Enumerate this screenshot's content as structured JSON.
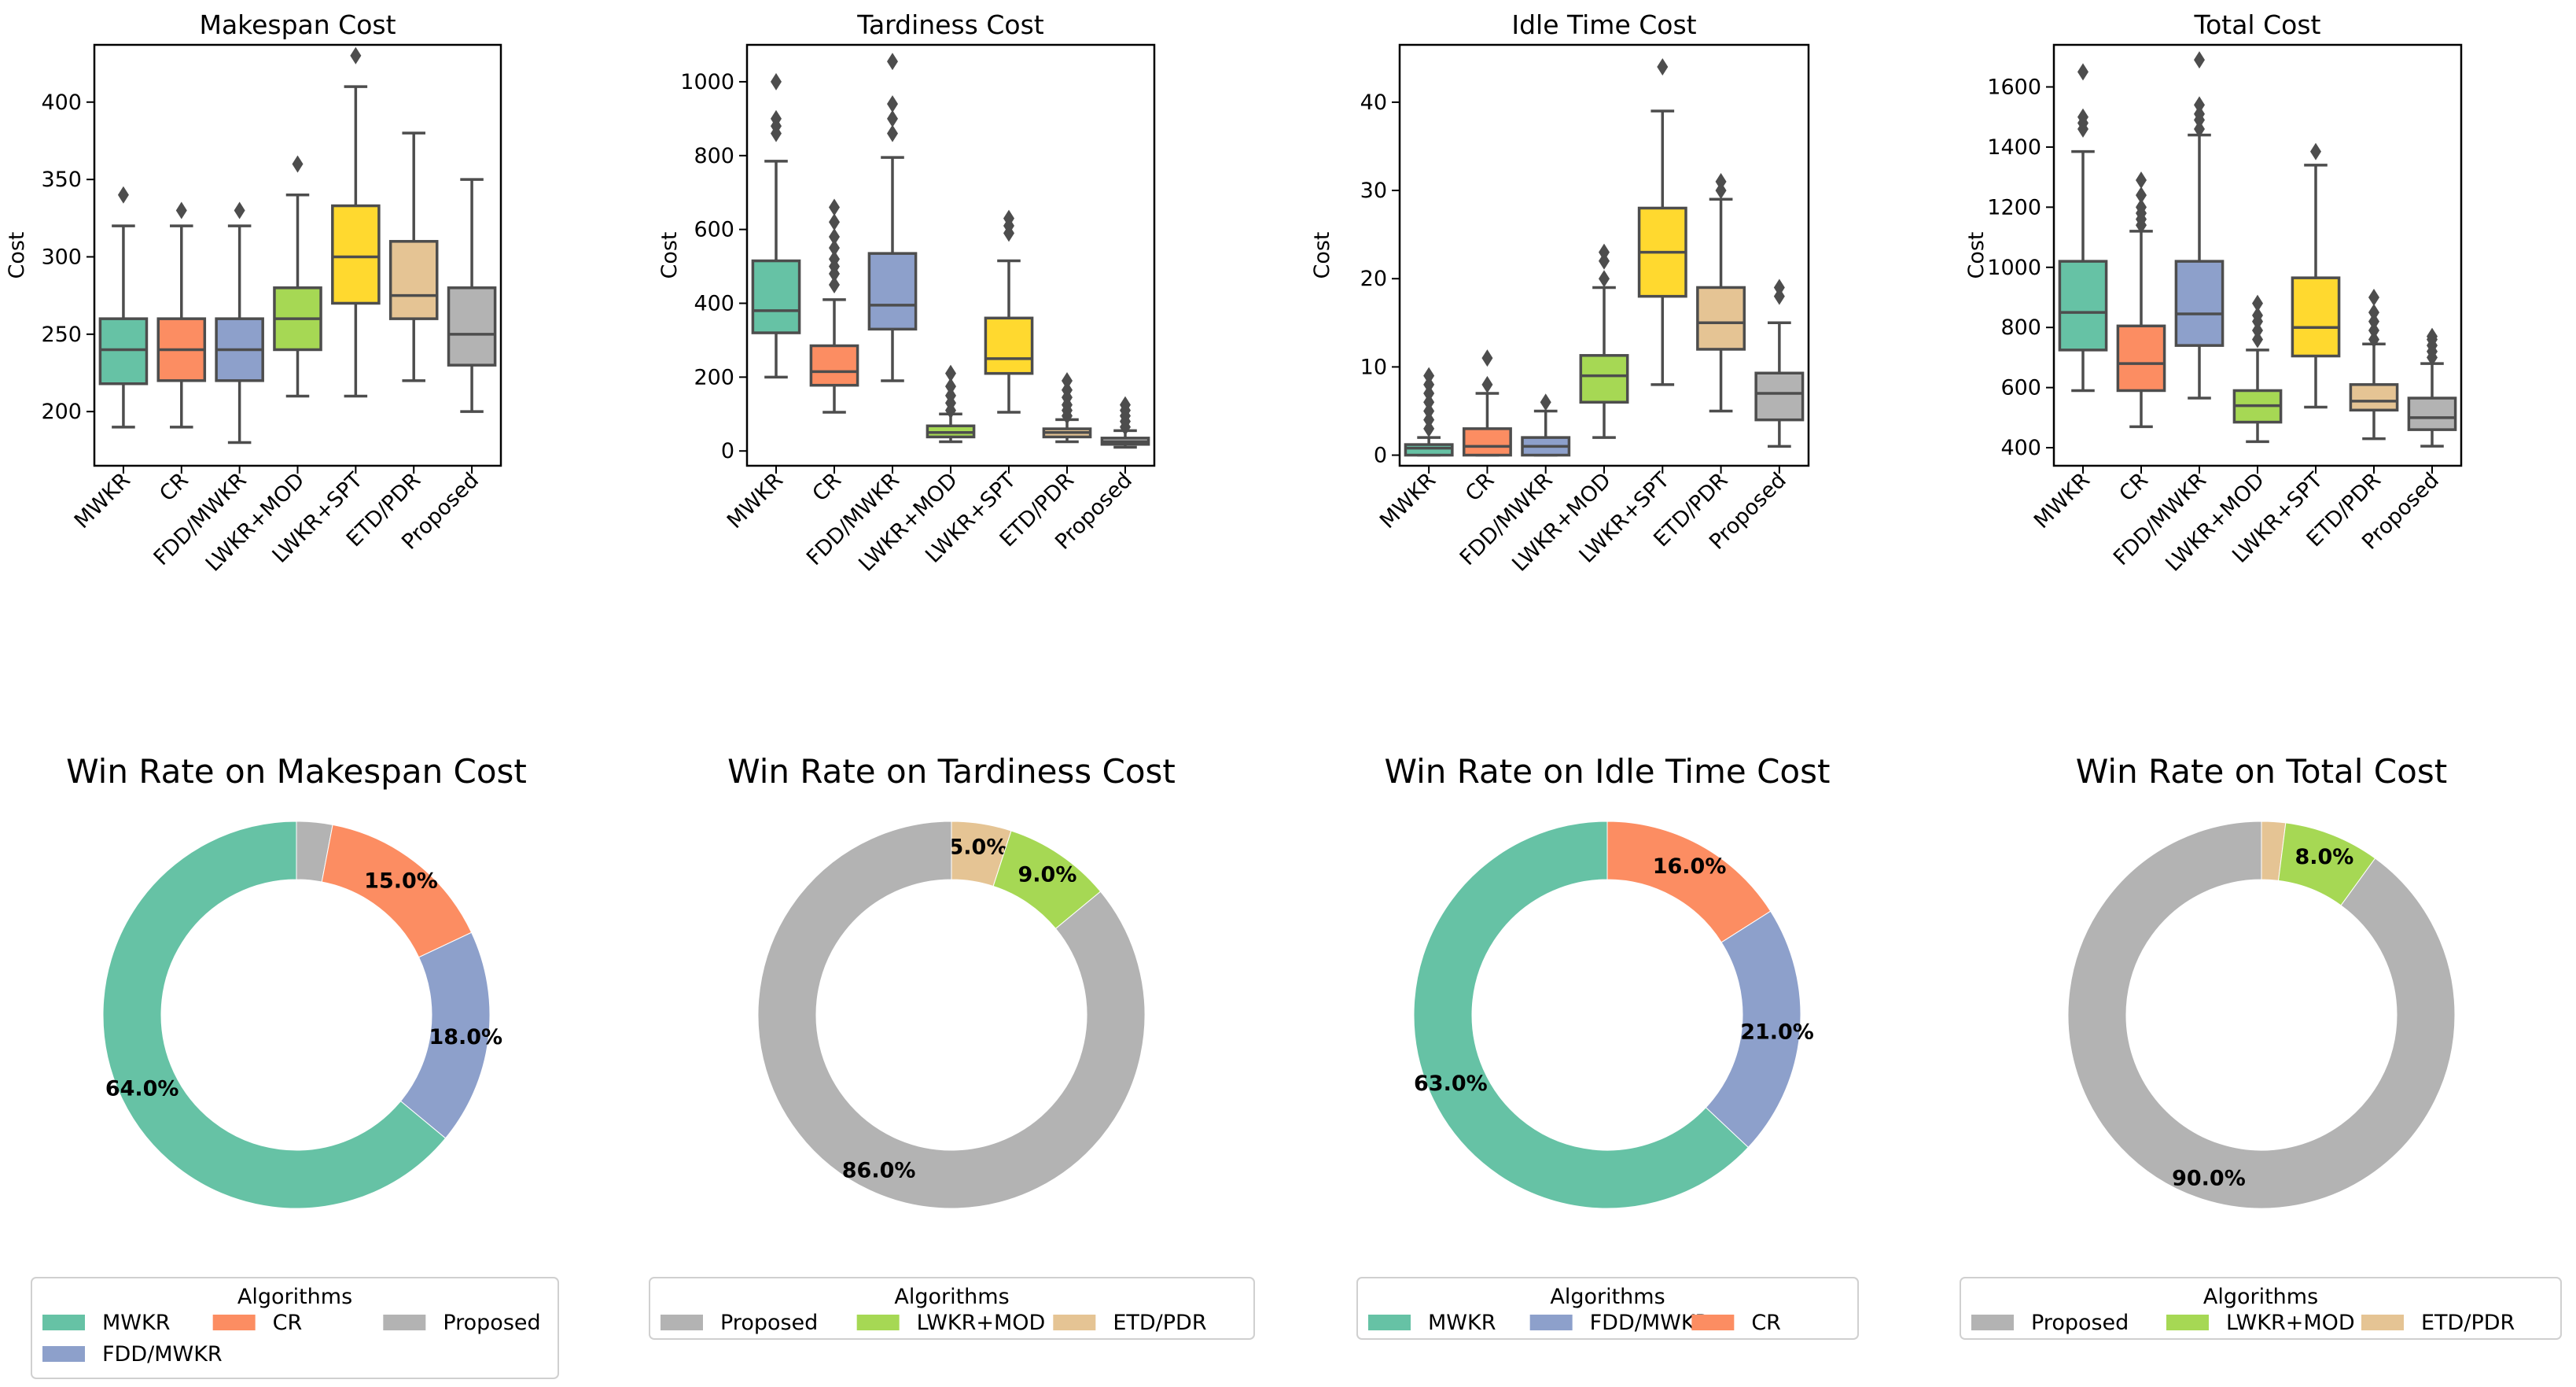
{
  "colors": {
    "MWKR": "#66c2a5",
    "CR": "#fc8d62",
    "FDD/MWKR": "#8da0cb",
    "LWKR+MOD": "#a6d854",
    "LWKR+SPT": "#ffd92f",
    "ETD/PDR": "#e5c494",
    "Proposed": "#b3b3b3",
    "line": "#4d4d4d"
  },
  "chart_data": [
    {
      "type": "box",
      "title": "Makespan Cost",
      "ylabel": "Cost",
      "ylim": [
        165,
        437
      ],
      "yticks": [
        200,
        250,
        300,
        350,
        400
      ],
      "categories": [
        "MWKR",
        "CR",
        "FDD/MWKR",
        "LWKR+MOD",
        "LWKR+SPT",
        "ETD/PDR",
        "Proposed"
      ],
      "boxes": [
        {
          "low": 190,
          "q1": 218,
          "median": 240,
          "q3": 260,
          "high": 320,
          "outliers": [
            340
          ]
        },
        {
          "low": 190,
          "q1": 220,
          "median": 240,
          "q3": 260,
          "high": 320,
          "outliers": [
            330
          ]
        },
        {
          "low": 180,
          "q1": 220,
          "median": 240,
          "q3": 260,
          "high": 320,
          "outliers": [
            330
          ]
        },
        {
          "low": 210,
          "q1": 240,
          "median": 260,
          "q3": 280,
          "high": 340,
          "outliers": [
            360
          ]
        },
        {
          "low": 210,
          "q1": 270,
          "median": 300,
          "q3": 333,
          "high": 410,
          "outliers": [
            430
          ]
        },
        {
          "low": 220,
          "q1": 260,
          "median": 275,
          "q3": 310,
          "high": 380,
          "outliers": []
        },
        {
          "low": 200,
          "q1": 230,
          "median": 250,
          "q3": 280,
          "high": 350,
          "outliers": []
        }
      ]
    },
    {
      "type": "box",
      "title": "Tardiness Cost",
      "ylabel": "Cost",
      "ylim": [
        -40,
        1100
      ],
      "yticks": [
        0,
        200,
        400,
        600,
        800,
        1000
      ],
      "categories": [
        "MWKR",
        "CR",
        "FDD/MWKR",
        "LWKR+MOD",
        "LWKR+SPT",
        "ETD/PDR",
        "Proposed"
      ],
      "boxes": [
        {
          "low": 200,
          "q1": 320,
          "median": 380,
          "q3": 515,
          "high": 785,
          "outliers": [
            860,
            880,
            900,
            1000
          ]
        },
        {
          "low": 105,
          "q1": 178,
          "median": 215,
          "q3": 285,
          "high": 410,
          "outliers": [
            450,
            480,
            500,
            520,
            550,
            580,
            620,
            660
          ]
        },
        {
          "low": 190,
          "q1": 330,
          "median": 395,
          "q3": 535,
          "high": 795,
          "outliers": [
            860,
            900,
            940,
            1055
          ]
        },
        {
          "low": 25,
          "q1": 38,
          "median": 50,
          "q3": 68,
          "high": 100,
          "outliers": [
            110,
            130,
            150,
            175,
            210
          ]
        },
        {
          "low": 105,
          "q1": 210,
          "median": 250,
          "q3": 360,
          "high": 515,
          "outliers": [
            590,
            610,
            630
          ]
        },
        {
          "low": 25,
          "q1": 38,
          "median": 50,
          "q3": 60,
          "high": 85,
          "outliers": [
            95,
            110,
            125,
            145,
            165,
            190
          ]
        },
        {
          "low": 10,
          "q1": 18,
          "median": 25,
          "q3": 35,
          "high": 55,
          "outliers": [
            65,
            80,
            95,
            110,
            125
          ]
        }
      ]
    },
    {
      "type": "box",
      "title": "Idle Time Cost",
      "ylabel": "Cost",
      "ylim": [
        -1.2,
        46.5
      ],
      "yticks": [
        0,
        10,
        20,
        30,
        40
      ],
      "categories": [
        "MWKR",
        "CR",
        "FDD/MWKR",
        "LWKR+MOD",
        "LWKR+SPT",
        "ETD/PDR",
        "Proposed"
      ],
      "boxes": [
        {
          "low": 0,
          "q1": 0,
          "median": 0.8,
          "q3": 1.2,
          "high": 2,
          "outliers": [
            3,
            4,
            5,
            6,
            7,
            8,
            9
          ]
        },
        {
          "low": 0,
          "q1": 0,
          "median": 1,
          "q3": 3,
          "high": 7,
          "outliers": [
            8,
            11
          ]
        },
        {
          "low": 0,
          "q1": 0,
          "median": 1,
          "q3": 2,
          "high": 5,
          "outliers": [
            6
          ]
        },
        {
          "low": 2,
          "q1": 6,
          "median": 9,
          "q3": 11.3,
          "high": 19,
          "outliers": [
            20,
            22,
            23
          ]
        },
        {
          "low": 8,
          "q1": 18,
          "median": 23,
          "q3": 28,
          "high": 39,
          "outliers": [
            44
          ]
        },
        {
          "low": 5,
          "q1": 12,
          "median": 15,
          "q3": 19,
          "high": 29,
          "outliers": [
            30,
            31
          ]
        },
        {
          "low": 1,
          "q1": 4,
          "median": 7,
          "q3": 9.3,
          "high": 15,
          "outliers": [
            18,
            19
          ]
        }
      ]
    },
    {
      "type": "box",
      "title": "Total Cost",
      "ylabel": "Cost",
      "ylim": [
        340,
        1740
      ],
      "yticks": [
        400,
        600,
        800,
        1000,
        1200,
        1400,
        1600
      ],
      "categories": [
        "MWKR",
        "CR",
        "FDD/MWKR",
        "LWKR+MOD",
        "LWKR+SPT",
        "ETD/PDR",
        "Proposed"
      ],
      "boxes": [
        {
          "low": 590,
          "q1": 725,
          "median": 850,
          "q3": 1020,
          "high": 1385,
          "outliers": [
            1460,
            1480,
            1500,
            1650
          ]
        },
        {
          "low": 470,
          "q1": 590,
          "median": 680,
          "q3": 805,
          "high": 1120,
          "outliers": [
            1140,
            1160,
            1180,
            1200,
            1240,
            1290
          ]
        },
        {
          "low": 565,
          "q1": 740,
          "median": 845,
          "q3": 1020,
          "high": 1440,
          "outliers": [
            1460,
            1490,
            1510,
            1540,
            1690
          ]
        },
        {
          "low": 420,
          "q1": 485,
          "median": 540,
          "q3": 590,
          "high": 725,
          "outliers": [
            760,
            790,
            820,
            840,
            880
          ]
        },
        {
          "low": 535,
          "q1": 705,
          "median": 800,
          "q3": 965,
          "high": 1340,
          "outliers": [
            1385
          ]
        },
        {
          "low": 430,
          "q1": 525,
          "median": 555,
          "q3": 610,
          "high": 745,
          "outliers": [
            760,
            790,
            820,
            850,
            900
          ]
        },
        {
          "low": 405,
          "q1": 460,
          "median": 500,
          "q3": 565,
          "high": 680,
          "outliers": [
            700,
            720,
            740,
            760,
            770
          ]
        }
      ]
    },
    {
      "type": "pie",
      "title": "Win Rate on Makespan Cost",
      "labels": [
        "MWKR",
        "CR",
        "FDD/MWKR",
        "Proposed"
      ],
      "values": [
        64.0,
        15.0,
        18.0,
        3.0
      ],
      "slice_order": [
        "Proposed",
        "CR",
        "FDD/MWKR",
        "MWKR"
      ],
      "percent_labels": {
        "CR": "15.0%",
        "FDD/MWKR": "18.0%",
        "MWKR": "64.0%"
      },
      "legend_title": "Algorithms",
      "legend": [
        "MWKR",
        "FDD/MWKR",
        "CR",
        "Proposed"
      ]
    },
    {
      "type": "pie",
      "title": "Win Rate on Tardiness Cost",
      "labels": [
        "Proposed",
        "LWKR+MOD",
        "ETD/PDR"
      ],
      "values": [
        86.0,
        9.0,
        5.0
      ],
      "slice_order": [
        "ETD/PDR",
        "LWKR+MOD",
        "Proposed"
      ],
      "percent_labels": {
        "ETD/PDR": "5.0%",
        "LWKR+MOD": "9.0%",
        "Proposed": "86.0%"
      },
      "legend_title": "Algorithms",
      "legend": [
        "Proposed",
        "LWKR+MOD",
        "ETD/PDR"
      ]
    },
    {
      "type": "pie",
      "title": "Win Rate on Idle Time Cost",
      "labels": [
        "MWKR",
        "FDD/MWKR",
        "CR"
      ],
      "values": [
        63.0,
        21.0,
        16.0
      ],
      "slice_order": [
        "CR",
        "FDD/MWKR",
        "MWKR"
      ],
      "percent_labels": {
        "CR": "16.0%",
        "FDD/MWKR": "21.0%",
        "MWKR": "63.0%"
      },
      "legend_title": "Algorithms",
      "legend": [
        "MWKR",
        "FDD/MWKR",
        "CR"
      ]
    },
    {
      "type": "pie",
      "title": "Win Rate on Total Cost",
      "labels": [
        "Proposed",
        "LWKR+MOD",
        "ETD/PDR"
      ],
      "values": [
        90.0,
        8.0,
        2.0
      ],
      "slice_order": [
        "ETD/PDR",
        "LWKR+MOD",
        "Proposed"
      ],
      "percent_labels": {
        "LWKR+MOD": "8.0%",
        "Proposed": "90.0%"
      },
      "legend_title": "Algorithms",
      "legend": [
        "Proposed",
        "LWKR+MOD",
        "ETD/PDR"
      ]
    }
  ]
}
